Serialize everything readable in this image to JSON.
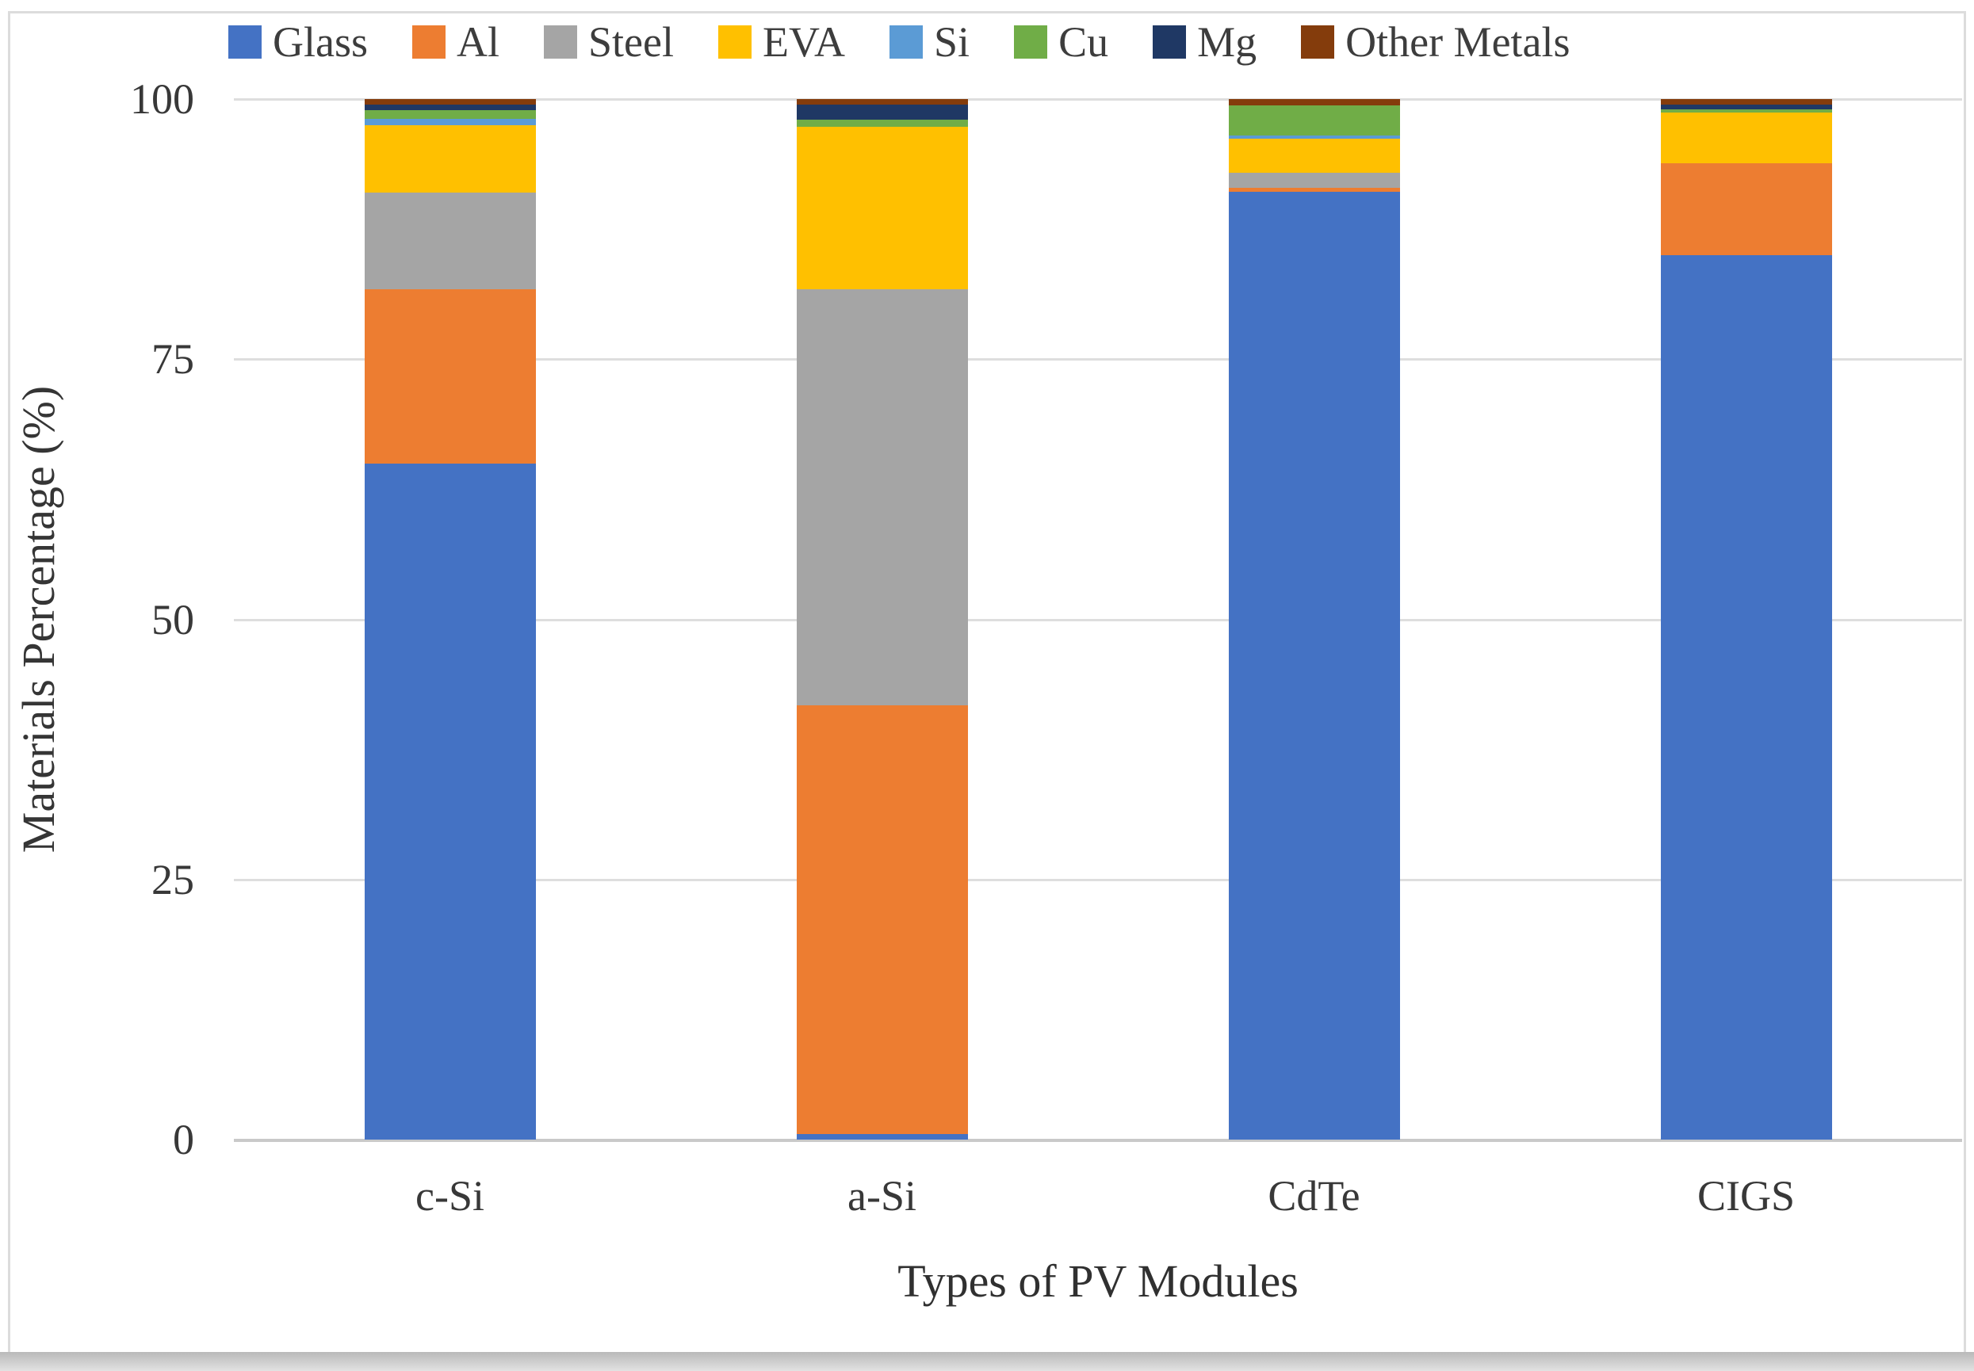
{
  "chart_data": {
    "type": "bar",
    "stacked": true,
    "title": "",
    "xlabel": "Types of PV Modules",
    "ylabel": "Materials Percentage (%)",
    "categories": [
      "c-Si",
      "a-Si",
      "CdTe",
      "CIGS"
    ],
    "series": [
      {
        "name": "Glass",
        "color": "#4472C4",
        "values": [
          65.0,
          0.5,
          91.1,
          85.0
        ]
      },
      {
        "name": "Al",
        "color": "#ED7D31",
        "values": [
          16.7,
          41.2,
          0.4,
          8.8
        ]
      },
      {
        "name": "Steel",
        "color": "#A5A5A5",
        "values": [
          9.3,
          40.0,
          1.4,
          0
        ]
      },
      {
        "name": "EVA",
        "color": "#FFC000",
        "values": [
          6.5,
          15.6,
          3.3,
          4.9
        ]
      },
      {
        "name": "Si",
        "color": "#5B9BD5",
        "values": [
          0.6,
          0,
          0.3,
          0
        ]
      },
      {
        "name": "Cu",
        "color": "#70AD47",
        "values": [
          0.8,
          0.7,
          2.9,
          0.3
        ]
      },
      {
        "name": "Mg",
        "color": "#1F3864",
        "values": [
          0.6,
          1.5,
          0,
          0.5
        ]
      },
      {
        "name": "Other Metals",
        "color": "#843C0C",
        "values": [
          0.5,
          0.5,
          0.6,
          0.5
        ]
      }
    ],
    "ylim": [
      0,
      100
    ],
    "yticks": [
      0,
      25,
      50,
      75,
      100
    ],
    "grid": true,
    "legend_position": "top"
  },
  "style": {
    "gridline_color": "#dedede",
    "axis_line_color": "#c9c9c9",
    "text_color": "#383838",
    "frame_color": "#dcdcdc",
    "background": "#ffffff"
  }
}
